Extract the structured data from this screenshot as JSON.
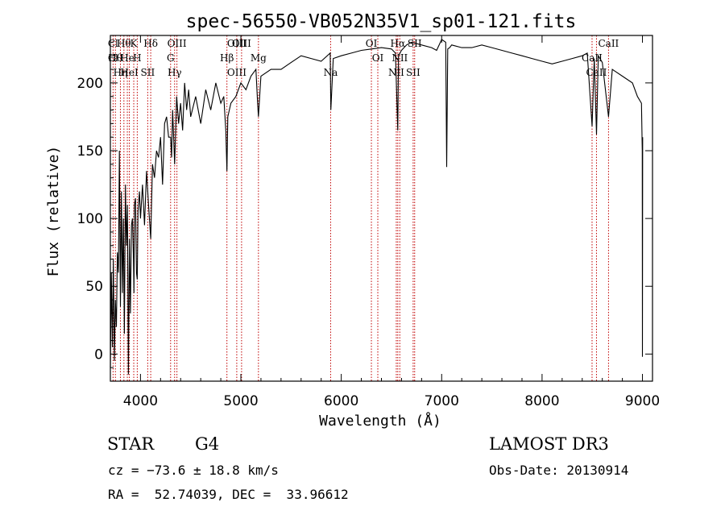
{
  "chart_data": {
    "type": "line",
    "title": "spec-56550-VB052N35V1_sp01-121.fits",
    "xlabel": "Wavelength (Å)",
    "ylabel": "Flux (relative)",
    "xlim": [
      3700,
      9100
    ],
    "ylim": [
      -20,
      235
    ],
    "xticks": [
      4000,
      5000,
      6000,
      7000,
      8000,
      9000
    ],
    "yticks": [
      0,
      50,
      100,
      150,
      200
    ],
    "series": [
      {
        "name": "flux",
        "x": [
          3700,
          3710,
          3720,
          3730,
          3740,
          3750,
          3760,
          3770,
          3780,
          3790,
          3800,
          3810,
          3820,
          3830,
          3840,
          3850,
          3860,
          3870,
          3880,
          3890,
          3900,
          3910,
          3920,
          3930,
          3935,
          3940,
          3950,
          3960,
          3968,
          3975,
          3990,
          4000,
          4020,
          4040,
          4060,
          4080,
          4102,
          4120,
          4140,
          4160,
          4180,
          4200,
          4220,
          4240,
          4260,
          4280,
          4300,
          4310,
          4320,
          4340,
          4360,
          4380,
          4400,
          4420,
          4440,
          4460,
          4480,
          4500,
          4550,
          4600,
          4650,
          4700,
          4750,
          4800,
          4830,
          4850,
          4861,
          4870,
          4900,
          4950,
          5000,
          5050,
          5100,
          5150,
          5167,
          5175,
          5200,
          5300,
          5400,
          5500,
          5600,
          5700,
          5800,
          5890,
          5896,
          5920,
          6000,
          6100,
          6200,
          6300,
          6400,
          6500,
          6540,
          6563,
          6570,
          6600,
          6650,
          6700,
          6800,
          6900,
          6950,
          7000,
          7040,
          7050,
          7060,
          7080,
          7100,
          7200,
          7300,
          7400,
          7500,
          7600,
          7700,
          7800,
          7900,
          8000,
          8100,
          8200,
          8300,
          8400,
          8450,
          8498,
          8520,
          8542,
          8560,
          8600,
          8662,
          8700,
          8800,
          8900,
          8950,
          8990,
          8998,
          9000,
          9002
        ],
        "values": [
          -10,
          60,
          5,
          70,
          -5,
          40,
          20,
          75,
          60,
          150,
          35,
          120,
          45,
          100,
          15,
          125,
          80,
          110,
          -15,
          85,
          30,
          95,
          100,
          70,
          45,
          110,
          115,
          60,
          55,
          105,
          120,
          100,
          125,
          95,
          135,
          110,
          85,
          140,
          130,
          150,
          145,
          160,
          125,
          170,
          175,
          160,
          160,
          145,
          180,
          140,
          190,
          170,
          185,
          165,
          200,
          180,
          195,
          175,
          190,
          170,
          195,
          180,
          200,
          185,
          190,
          165,
          135,
          175,
          185,
          190,
          200,
          195,
          205,
          210,
          185,
          175,
          205,
          210,
          210,
          215,
          220,
          218,
          216,
          222,
          180,
          218,
          220,
          222,
          224,
          225,
          226,
          225,
          222,
          165,
          220,
          224,
          228,
          230,
          228,
          226,
          224,
          232,
          230,
          138,
          225,
          226,
          228,
          226,
          226,
          228,
          226,
          224,
          222,
          220,
          218,
          216,
          214,
          216,
          218,
          220,
          222,
          168,
          218,
          162,
          220,
          215,
          175,
          210,
          205,
          200,
          190,
          185,
          150,
          -2,
          160
        ]
      }
    ],
    "lines": [
      {
        "wavelength": 3727,
        "labels": [
          "Cl",
          "Cl"
        ]
      },
      {
        "wavelength": 3750,
        "labels": [
          "Hθ"
        ]
      },
      {
        "wavelength": 3800,
        "labels": [
          "Hη"
        ]
      },
      {
        "wavelength": 3835,
        "labels": [
          "Hθ"
        ]
      },
      {
        "wavelength": 3869,
        "labels": [
          "He"
        ]
      },
      {
        "wavelength": 3889,
        "labels": [
          "HeI"
        ]
      },
      {
        "wavelength": 3933,
        "labels": [
          "K"
        ]
      },
      {
        "wavelength": 3968,
        "labels": [
          "H"
        ]
      },
      {
        "wavelength": 4072,
        "labels": [
          "SII"
        ]
      },
      {
        "wavelength": 4102,
        "labels": [
          "Hδ"
        ]
      },
      {
        "wavelength": 4300,
        "labels": [
          "G"
        ]
      },
      {
        "wavelength": 4340,
        "labels": [
          "Hγ"
        ]
      },
      {
        "wavelength": 4363,
        "labels": [
          "OIII"
        ]
      },
      {
        "wavelength": 4861,
        "labels": [
          "Hβ"
        ]
      },
      {
        "wavelength": 4959,
        "labels": [
          "OIII",
          "OIII"
        ]
      },
      {
        "wavelength": 5007,
        "labels": [
          "OIII"
        ]
      },
      {
        "wavelength": 5175,
        "labels": [
          "Mg"
        ]
      },
      {
        "wavelength": 5894,
        "labels": [
          "Na"
        ]
      },
      {
        "wavelength": 6300,
        "labels": [
          "OI"
        ]
      },
      {
        "wavelength": 6364,
        "labels": [
          "OI"
        ]
      },
      {
        "wavelength": 6548,
        "labels": [
          "NII"
        ]
      },
      {
        "wavelength": 6563,
        "labels": [
          "Hα"
        ]
      },
      {
        "wavelength": 6583,
        "labels": [
          "NII"
        ]
      },
      {
        "wavelength": 6716,
        "labels": [
          "SII"
        ]
      },
      {
        "wavelength": 6731,
        "labels": [
          "SII"
        ]
      },
      {
        "wavelength": 8498,
        "labels": [
          "CaII"
        ]
      },
      {
        "wavelength": 8542,
        "labels": [
          "CaII"
        ]
      },
      {
        "wavelength": 8662,
        "labels": [
          "CaII"
        ]
      }
    ],
    "colors": {
      "spectrum": "#000000",
      "lines": "#c00000"
    },
    "legend": "none",
    "grid": false
  },
  "info": {
    "object_class": "STAR",
    "subclass": "G4",
    "survey": "LAMOST DR3",
    "cz": "cz = −73.6 ± 18.8 km/s",
    "obs_date": "Obs-Date: 20130914",
    "coords": "RA =  52.74039, DEC =  33.96612"
  }
}
